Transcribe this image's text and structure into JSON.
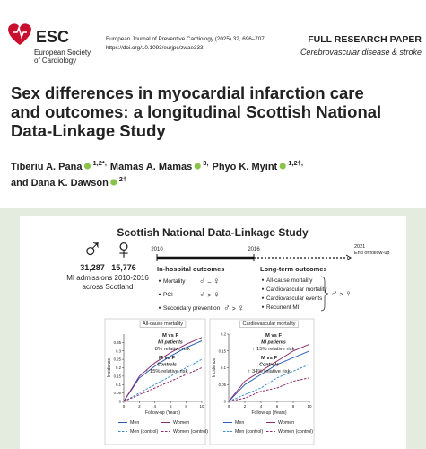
{
  "header": {
    "society_short": "ESC",
    "society_lines": [
      "European Society",
      "of Cardiology"
    ],
    "journal": "European Journal of Preventive Cardiology (2025) 32, 696–707",
    "doi": "https://doi.org/10.1093/eurjpc/zwae333",
    "article_type": "FULL RESEARCH PAPER",
    "section": "Cerebrovascular disease & stroke"
  },
  "title_lines": [
    "Sex differences in myocardial infarction care",
    "and outcomes: a longitudinal Scottish National",
    "Data-Linkage Study"
  ],
  "authors": [
    {
      "name": "Tiberiu A. Pana",
      "affiliations": "1,2*,"
    },
    {
      "name": "Mamas A. Mamas",
      "affiliations": "3,"
    },
    {
      "name": "Phyo K. Myint",
      "affiliations": "1,2†,"
    },
    {
      "name": "and Dana K. Dawson",
      "affiliations": "2†"
    }
  ],
  "graphical_abstract": {
    "title": "Scottish National Data-Linkage Study",
    "symbols": {
      "male": "♂",
      "female": "♀"
    },
    "cohort": {
      "men": "31,287",
      "women": "15,776",
      "caption": [
        "MI admissions 2010-2016",
        "across Scotland"
      ]
    },
    "timeline": {
      "start": "2010",
      "mid": "2016",
      "end": "2021",
      "end_label": "End of follow-up"
    },
    "in_hospital": {
      "heading": "In-hospital outcomes",
      "items": [
        {
          "label": "Mortality",
          "relation": "–"
        },
        {
          "label": "PCI",
          "relation": ">"
        },
        {
          "label": "Secondary prevention",
          "relation": ">"
        }
      ]
    },
    "long_term": {
      "heading": "Long-term outcomes",
      "items": [
        "All-cause mortality",
        "Cardiovascular mortality",
        "Cardiovascular events",
        "Recurrent MI"
      ],
      "relation": ">"
    },
    "charts": [
      {
        "type": "line",
        "title": "All-cause mortality",
        "x_label": "Follow-up (Years)",
        "y_label": "Incidence",
        "x": [
          0,
          2,
          4,
          6,
          8,
          10
        ],
        "xlim": [
          0,
          10
        ],
        "xticks": [
          0,
          2,
          4,
          6,
          8,
          10
        ],
        "ylim": [
          0,
          0.4
        ],
        "yticks": [
          0,
          0.05,
          0.1,
          0.15,
          0.2,
          0.25,
          0.3,
          0.35
        ],
        "series": [
          {
            "name": "Men",
            "color": "#2a5fb8",
            "dashed": false,
            "values": [
              0,
              0.14,
              0.21,
              0.27,
              0.32,
              0.36
            ]
          },
          {
            "name": "Women",
            "color": "#8e2b6e",
            "dashed": false,
            "values": [
              0,
              0.15,
              0.23,
              0.29,
              0.34,
              0.38
            ]
          },
          {
            "name": "Men (control)",
            "color": "#3f8fd0",
            "dashed": true,
            "values": [
              0,
              0.05,
              0.1,
              0.15,
              0.2,
              0.25
            ]
          },
          {
            "name": "Women (control)",
            "color": "#8e2b6e",
            "dashed": true,
            "values": [
              0,
              0.04,
              0.08,
              0.12,
              0.16,
              0.2
            ]
          }
        ],
        "annotations": [
          [
            "M vs F",
            "MI patients",
            "↑ 8% relative risk"
          ],
          [
            "M vs F",
            "Controls",
            "↑ 15% relative risk"
          ]
        ]
      },
      {
        "type": "line",
        "title": "Cardiovascular mortality",
        "x_label": "Follow-up (Years)",
        "y_label": "Incidence",
        "x": [
          0,
          2,
          4,
          6,
          8,
          10
        ],
        "xlim": [
          0,
          10
        ],
        "xticks": [
          0,
          2,
          4,
          6,
          8,
          10
        ],
        "ylim": [
          0,
          0.2
        ],
        "yticks": [
          0,
          0.05,
          0.1,
          0.15,
          0.2
        ],
        "series": [
          {
            "name": "Men",
            "color": "#2a5fb8",
            "dashed": false,
            "values": [
              0,
              0.05,
              0.08,
              0.11,
              0.13,
              0.15
            ]
          },
          {
            "name": "Women",
            "color": "#8e2b6e",
            "dashed": false,
            "values": [
              0,
              0.06,
              0.09,
              0.12,
              0.15,
              0.17
            ]
          },
          {
            "name": "Men (control)",
            "color": "#3f8fd0",
            "dashed": true,
            "values": [
              0,
              0.02,
              0.04,
              0.07,
              0.09,
              0.11
            ]
          },
          {
            "name": "Women (control)",
            "color": "#8e2b6e",
            "dashed": true,
            "values": [
              0,
              0.01,
              0.03,
              0.04,
              0.06,
              0.07
            ]
          }
        ],
        "annotations": [
          [
            "M vs F",
            "MI patients",
            "↑ 15% relative risk"
          ],
          [
            "M vs F",
            "Controls",
            "↑ 34% relative risk"
          ]
        ]
      }
    ]
  }
}
